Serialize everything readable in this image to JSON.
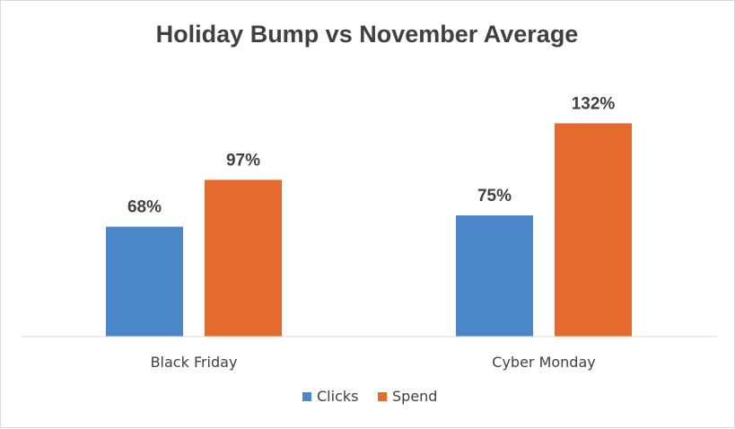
{
  "chart_data": {
    "type": "bar",
    "title": "Holiday Bump vs November Average",
    "categories": [
      "Black Friday",
      "Cyber Monday"
    ],
    "series": [
      {
        "name": "Clicks",
        "values": [
          68,
          75
        ],
        "labels": [
          "68%",
          "75%"
        ],
        "color": "#4a86c8"
      },
      {
        "name": "Spend",
        "values": [
          97,
          132
        ],
        "labels": [
          "97%",
          "132%"
        ],
        "color": "#e46a2e"
      }
    ],
    "xlabel": "",
    "ylabel": "",
    "ylim": [
      0,
      140
    ],
    "grid": false,
    "legend": "bottom"
  }
}
